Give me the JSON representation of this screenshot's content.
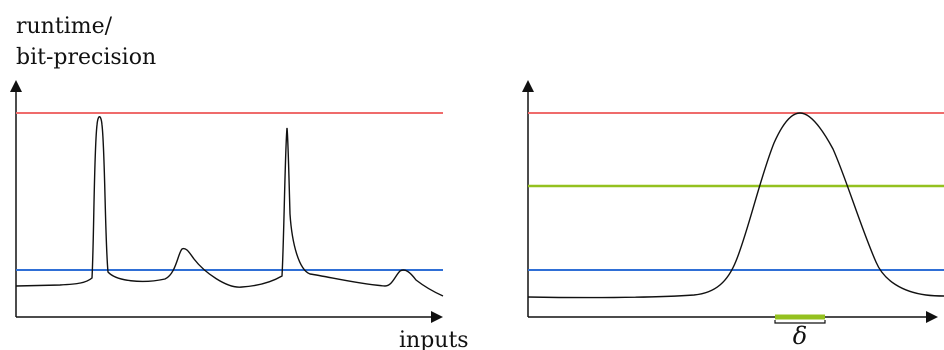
{
  "labels": {
    "y_axis_line1": "runtime/",
    "y_axis_line2": "bit-precision",
    "x_axis": "inputs",
    "delta": "δ"
  },
  "colors": {
    "axis": "#111111",
    "curve": "#111111",
    "red_line": "#ef6b6b",
    "blue_line": "#2f6fd6",
    "green_line": "#94c11f"
  }
}
